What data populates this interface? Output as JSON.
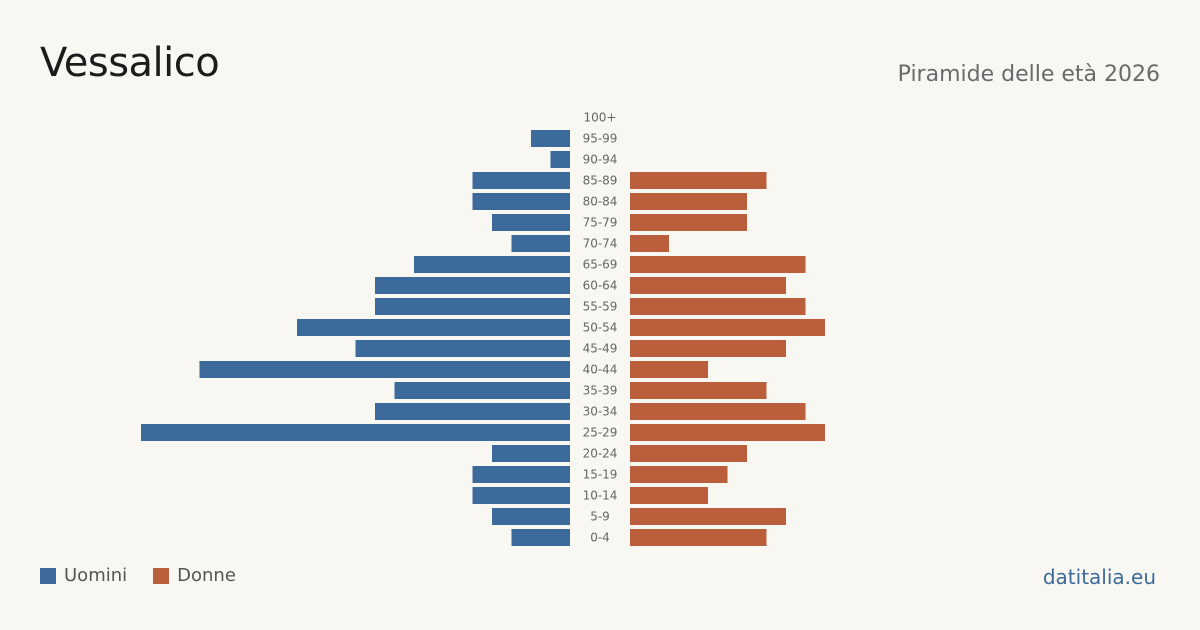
{
  "header": {
    "title": "Vessalico",
    "subtitle": "Piramide delle età 2026"
  },
  "legend": {
    "men_label": "Uomini",
    "women_label": "Donne"
  },
  "footer": {
    "brand": "datitalia.eu"
  },
  "colors": {
    "men": "#3b6a9b",
    "women": "#bb5e3c",
    "background": "#f9f7f2"
  },
  "chart_data": {
    "type": "bar",
    "orientation": "horizontal-pyramid",
    "categories": [
      "100+",
      "95-99",
      "90-94",
      "85-89",
      "80-84",
      "75-79",
      "70-74",
      "65-69",
      "60-64",
      "55-59",
      "50-54",
      "45-49",
      "40-44",
      "35-39",
      "30-34",
      "25-29",
      "20-24",
      "15-19",
      "10-14",
      "5-9",
      "0-4"
    ],
    "series": [
      {
        "name": "Uomini",
        "values": [
          0,
          2,
          1,
          5,
          5,
          4,
          3,
          8,
          10,
          10,
          14,
          11,
          19,
          9,
          10,
          22,
          4,
          5,
          5,
          4,
          3
        ]
      },
      {
        "name": "Donne",
        "values": [
          0,
          0,
          0,
          7,
          6,
          6,
          2,
          9,
          8,
          9,
          10,
          8,
          4,
          7,
          9,
          10,
          6,
          5,
          4,
          8,
          7
        ]
      }
    ],
    "legend_position": "bottom-left",
    "grid": false
  }
}
